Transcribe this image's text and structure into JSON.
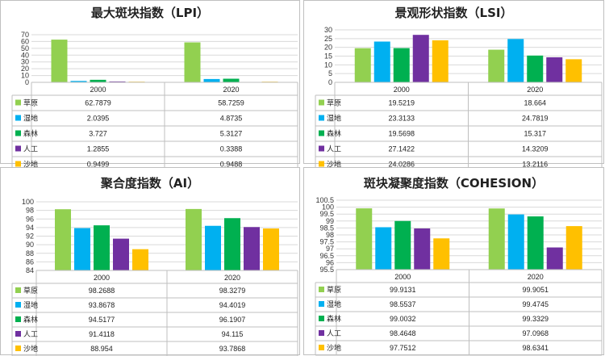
{
  "chart_data": [
    {
      "type": "bar",
      "title": "最大斑块指数（LPI）",
      "categories": [
        "2000",
        "2020"
      ],
      "series": [
        {
          "name": "草原",
          "values": [
            62.7879,
            58.7259
          ]
        },
        {
          "name": "湿地",
          "values": [
            2.0395,
            4.8735
          ]
        },
        {
          "name": "森林",
          "values": [
            3.727,
            5.3127
          ]
        },
        {
          "name": "人工",
          "values": [
            1.2855,
            0.3388
          ]
        },
        {
          "name": "沙地",
          "values": [
            0.9499,
            0.9488
          ]
        }
      ],
      "value_labels": [
        [
          "62.7879",
          "58.7259"
        ],
        [
          "2.0395",
          "4.8735"
        ],
        [
          "3.727",
          "5.3127"
        ],
        [
          "1.2855",
          "0.3388"
        ],
        [
          "0.9499",
          "0.9488"
        ]
      ],
      "ylim": [
        0,
        70
      ],
      "yticks": [
        "0",
        "10",
        "20",
        "30",
        "40",
        "50",
        "60",
        "70"
      ],
      "grid": true,
      "legend": "data-table"
    },
    {
      "type": "bar",
      "title": "景观形状指数（LSI）",
      "categories": [
        "2000",
        "2020"
      ],
      "series": [
        {
          "name": "草原",
          "values": [
            19.5219,
            18.664
          ]
        },
        {
          "name": "湿地",
          "values": [
            23.3133,
            24.7819
          ]
        },
        {
          "name": "森林",
          "values": [
            19.5698,
            15.317
          ]
        },
        {
          "name": "人工",
          "values": [
            27.1422,
            14.3209
          ]
        },
        {
          "name": "沙地",
          "values": [
            24.0286,
            13.2116
          ]
        }
      ],
      "value_labels": [
        [
          "19.5219",
          "18.664"
        ],
        [
          "23.3133",
          "24.7819"
        ],
        [
          "19.5698",
          "15.317"
        ],
        [
          "27.1422",
          "14.3209"
        ],
        [
          "24.0286",
          "13.2116"
        ]
      ],
      "ylim": [
        0,
        30
      ],
      "yticks": [
        "0",
        "5",
        "10",
        "15",
        "20",
        "25",
        "30"
      ],
      "grid": true,
      "legend": "data-table"
    },
    {
      "type": "bar",
      "title": "聚合度指数（AI）",
      "categories": [
        "2000",
        "2020"
      ],
      "series": [
        {
          "name": "草原",
          "values": [
            98.2688,
            98.3279
          ]
        },
        {
          "name": "湿地",
          "values": [
            93.8678,
            94.4019
          ]
        },
        {
          "name": "森林",
          "values": [
            94.5177,
            96.1907
          ]
        },
        {
          "name": "人工",
          "values": [
            91.4118,
            94.115
          ]
        },
        {
          "name": "沙地",
          "values": [
            88.954,
            93.7868
          ]
        }
      ],
      "value_labels": [
        [
          "98.2688",
          "98.3279"
        ],
        [
          "93.8678",
          "94.4019"
        ],
        [
          "94.5177",
          "96.1907"
        ],
        [
          "91.4118",
          "94.115"
        ],
        [
          "88.954",
          "93.7868"
        ]
      ],
      "ylim": [
        84,
        100
      ],
      "yticks": [
        "84",
        "86",
        "88",
        "90",
        "92",
        "94",
        "96",
        "98",
        "100"
      ],
      "grid": true,
      "legend": "data-table"
    },
    {
      "type": "bar",
      "title": "斑块凝聚度指数（COHESION）",
      "categories": [
        "2000",
        "2020"
      ],
      "series": [
        {
          "name": "草原",
          "values": [
            99.9131,
            99.9051
          ]
        },
        {
          "name": "湿地",
          "values": [
            98.5537,
            99.4745
          ]
        },
        {
          "name": "森林",
          "values": [
            99.0032,
            99.3329
          ]
        },
        {
          "name": "人工",
          "values": [
            98.4648,
            97.0968
          ]
        },
        {
          "name": "沙地",
          "values": [
            97.7512,
            98.6341
          ]
        }
      ],
      "value_labels": [
        [
          "99.9131",
          "99.9051"
        ],
        [
          "98.5537",
          "99.4745"
        ],
        [
          "99.0032",
          "99.3329"
        ],
        [
          "98.4648",
          "97.0968"
        ],
        [
          "97.7512",
          "98.6341"
        ]
      ],
      "ylim": [
        95.5,
        100.5
      ],
      "yticks": [
        "95.5",
        "96",
        "96.5",
        "97",
        "97.5",
        "98",
        "98.5",
        "99",
        "99.5",
        "100",
        "100.5"
      ],
      "grid": true,
      "legend": "data-table"
    }
  ],
  "colors": [
    "#92d050",
    "#00b0f0",
    "#00b050",
    "#7030a0",
    "#ffc000"
  ]
}
